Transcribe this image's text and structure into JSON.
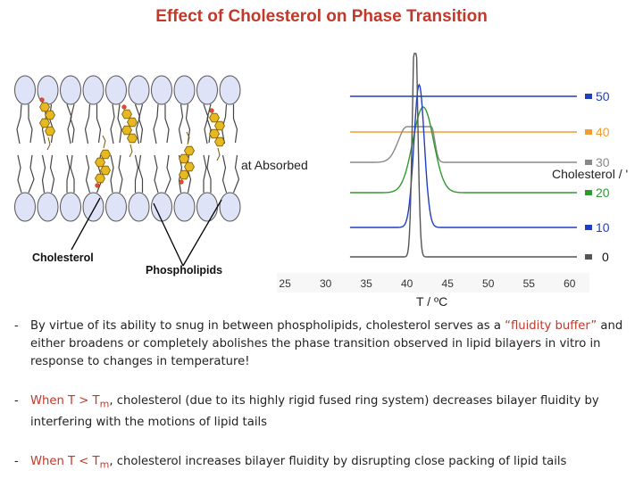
{
  "slide": {
    "title": "Effect of Cholesterol on Phase Transition"
  },
  "figure": {
    "labels": {
      "heat_absorbed": "at Absorbed",
      "cholesterol_axis": "Cholesterol / '",
      "x_axis": "T / ºC",
      "cholesterol": "Cholesterol",
      "phospholipids": "Phospholipids"
    },
    "colors": {
      "c50": "#1f3fbf",
      "c40": "#f39c33",
      "c30": "#888888",
      "c20": "#2e9a2e",
      "c10": "#1f3fbf",
      "c0": "#555555",
      "lipid_head": "#dfe3f7",
      "cholesterol": "#e8b820"
    }
  },
  "chart_data": {
    "type": "line",
    "xlabel": "T / ºC",
    "ylabel": "",
    "x_ticks": [
      25,
      30,
      35,
      40,
      45,
      50,
      55,
      60
    ],
    "xlim": [
      24,
      62
    ],
    "series_labels": [
      "50",
      "40",
      "30",
      "20",
      "10",
      "0"
    ],
    "series": [
      {
        "name": "50",
        "peak_T": null,
        "peak_height": 0
      },
      {
        "name": "40",
        "peak_T": null,
        "peak_height": 0
      },
      {
        "name": "30",
        "peak_T": 43,
        "peak_height": 0.25
      },
      {
        "name": "20",
        "peak_T": 42,
        "peak_height": 0.6
      },
      {
        "name": "10",
        "peak_T": 41.5,
        "peak_height": 1.0
      },
      {
        "name": "0",
        "peak_T": 41,
        "peak_height": 1.7
      }
    ],
    "legend": "right"
  },
  "bullets": [
    {
      "dash": "-",
      "text": "By virtue of its ability to snug in between phospholipids, cholesterol serves as a ",
      "highlight": "“fluidity buffer”",
      "rest": " and either broadens or completely abolishes the phase transition observed in lipid bilayers in vitro in response to changes in temperature!"
    },
    {
      "dash": "-",
      "lead": "When T > T",
      "sub": "m",
      "rest": ", cholesterol (due to its highly rigid fused ring system) decreases bilayer fluidity by interfering with the motions of lipid tails"
    },
    {
      "dash": "-",
      "lead": "When T < T",
      "sub": "m",
      "rest": ", cholesterol increases bilayer fluidity by disrupting close packing of lipid tails"
    }
  ]
}
